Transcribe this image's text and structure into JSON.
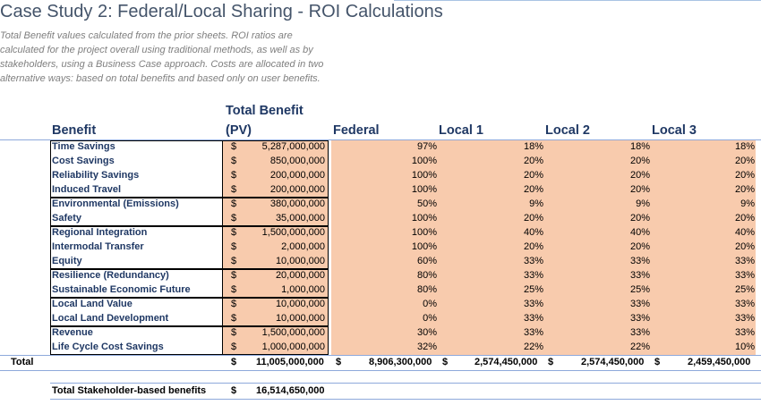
{
  "title": "Case Study 2: Federal/Local Sharing - ROI Calculations",
  "description": [
    "Total Benefit values calculated from the prior sheets.  ROI ratios are",
    "calculated for the project overall using traditional methods, as well as by",
    "stakeholders, using a Business Case approach.  Costs are allocated in two",
    "alternative ways: based on total benefits and based only on user benefits."
  ],
  "headers": {
    "benefit": "Benefit",
    "total_benefit_line1": "Total Benefit",
    "total_benefit_line2": "(PV)",
    "federal": "Federal",
    "local1": "Local 1",
    "local2": "Local 2",
    "local3": "Local 3"
  },
  "currency": "$",
  "rows": [
    {
      "label": "Time Savings",
      "amount": "5,287,000,000",
      "federal": "97%",
      "local1": "18%",
      "local2": "18%",
      "local3": "18%"
    },
    {
      "label": "Cost Savings",
      "amount": "850,000,000",
      "federal": "100%",
      "local1": "20%",
      "local2": "20%",
      "local3": "20%"
    },
    {
      "label": "Reliability Savings",
      "amount": "200,000,000",
      "federal": "100%",
      "local1": "20%",
      "local2": "20%",
      "local3": "20%"
    },
    {
      "label": "Induced Travel",
      "amount": "200,000,000",
      "federal": "100%",
      "local1": "20%",
      "local2": "20%",
      "local3": "20%"
    },
    {
      "label": "Environmental (Emissions)",
      "amount": "380,000,000",
      "federal": "50%",
      "local1": "9%",
      "local2": "9%",
      "local3": "9%"
    },
    {
      "label": "Safety",
      "amount": "35,000,000",
      "federal": "100%",
      "local1": "20%",
      "local2": "20%",
      "local3": "20%"
    },
    {
      "label": "Regional Integration",
      "amount": "1,500,000,000",
      "federal": "100%",
      "local1": "40%",
      "local2": "40%",
      "local3": "40%"
    },
    {
      "label": "Intermodal Transfer",
      "amount": "2,000,000",
      "federal": "100%",
      "local1": "20%",
      "local2": "20%",
      "local3": "20%"
    },
    {
      "label": "Equity",
      "amount": "10,000,000",
      "federal": "60%",
      "local1": "33%",
      "local2": "33%",
      "local3": "33%"
    },
    {
      "label": "Resilience (Redundancy)",
      "amount": "20,000,000",
      "federal": "80%",
      "local1": "33%",
      "local2": "33%",
      "local3": "33%"
    },
    {
      "label": "Sustainable Economic Future",
      "amount": "1,000,000",
      "federal": "80%",
      "local1": "25%",
      "local2": "25%",
      "local3": "25%"
    },
    {
      "label": "Local Land Value",
      "amount": "10,000,000",
      "federal": "0%",
      "local1": "33%",
      "local2": "33%",
      "local3": "33%"
    },
    {
      "label": "Local Land Development",
      "amount": "10,000,000",
      "federal": "0%",
      "local1": "33%",
      "local2": "33%",
      "local3": "33%"
    },
    {
      "label": "Revenue",
      "amount": "1,500,000,000",
      "federal": "30%",
      "local1": "33%",
      "local2": "33%",
      "local3": "33%"
    },
    {
      "label": "Life Cycle Cost Savings",
      "amount": "1,000,000,000",
      "federal": "32%",
      "local1": "22%",
      "local2": "22%",
      "local3": "10%"
    }
  ],
  "total": {
    "label": "Total",
    "amount": "11,005,000,000",
    "federal": "8,906,300,000",
    "local1": "2,574,450,000",
    "local2": "2,574,450,000",
    "local3": "2,459,450,000"
  },
  "stakeholder": {
    "label": "Total Stakeholder-based benefits",
    "amount": "16,514,650,000"
  },
  "colors": {
    "title": "#44546A",
    "header": "#1F3864",
    "highlight": "#F8CBAD",
    "rule": "#8EA9DB"
  }
}
